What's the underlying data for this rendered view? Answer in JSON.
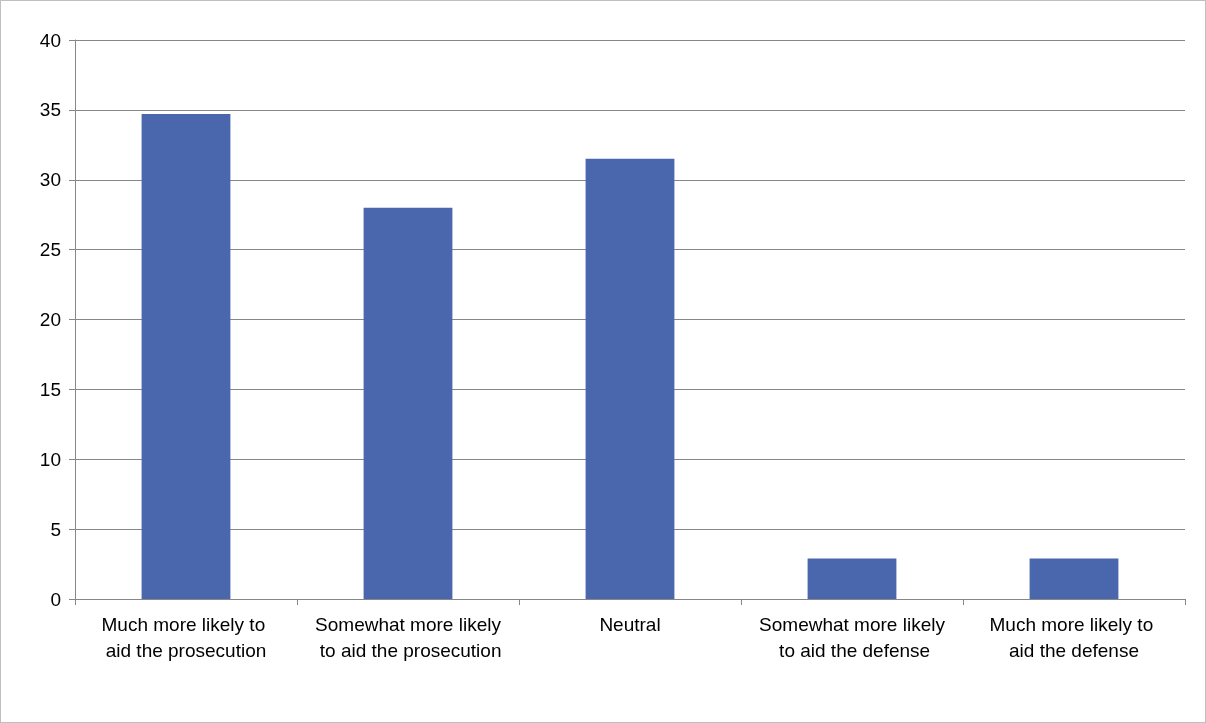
{
  "chart_data": {
    "type": "bar",
    "categories": [
      "Much more likely to aid the prosecution",
      "Somewhat more likely to aid the prosecution",
      "Neutral",
      "Somewhat more likely to aid the defense",
      "Much more likely to aid the defense"
    ],
    "values": [
      34.7,
      28.0,
      31.5,
      2.9,
      2.9
    ],
    "color": "#4a66ac",
    "ylim": [
      0,
      40
    ],
    "yticks": [
      0,
      5,
      10,
      15,
      20,
      25,
      30,
      35,
      40
    ],
    "grid": "y"
  }
}
